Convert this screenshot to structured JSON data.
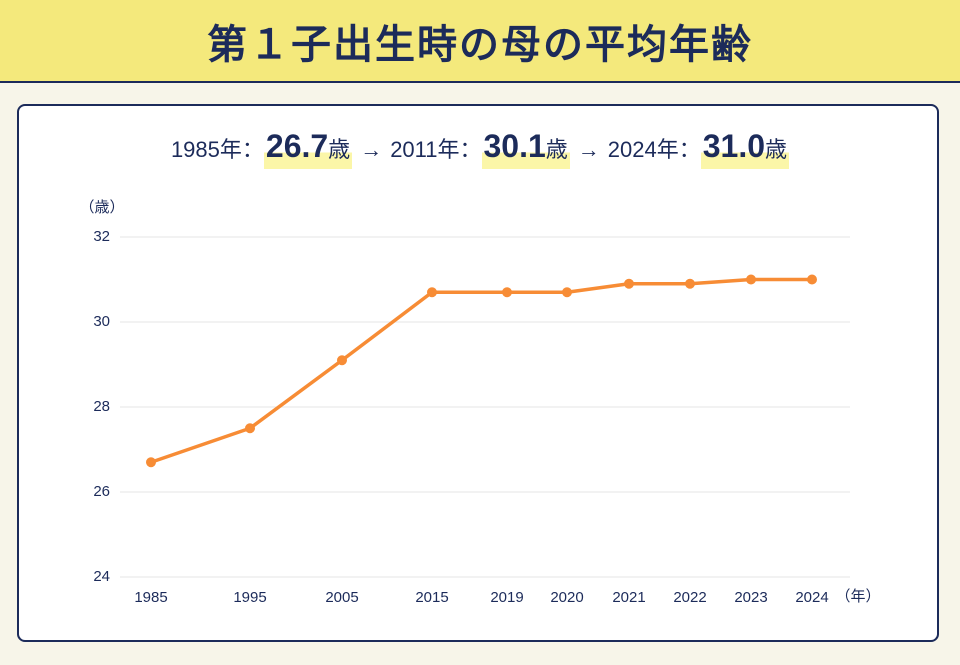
{
  "chart_data": {
    "type": "line",
    "title": "第１子出生時の母の平均年齢",
    "subtitle": [
      {
        "label": "1985年：",
        "value": "26.7",
        "unit": "歳"
      },
      {
        "arrow": "→",
        "label": "2011年：",
        "value": "30.1",
        "unit": "歳"
      },
      {
        "arrow": "→",
        "label": "2024年：",
        "value": "31.0",
        "unit": "歳"
      }
    ],
    "ylabel": "（歳）",
    "xlabel": "（年）",
    "categories": [
      "1985",
      "1995",
      "2005",
      "2015",
      "2019",
      "2020",
      "2021",
      "2022",
      "2023",
      "2024"
    ],
    "values": [
      26.7,
      27.5,
      29.1,
      30.7,
      30.7,
      30.7,
      30.9,
      30.9,
      31.0,
      31.0
    ],
    "color": "#f78c35",
    "ylim": [
      24,
      32
    ],
    "yticks": [
      24,
      26,
      28,
      30,
      32
    ],
    "grid": true
  }
}
